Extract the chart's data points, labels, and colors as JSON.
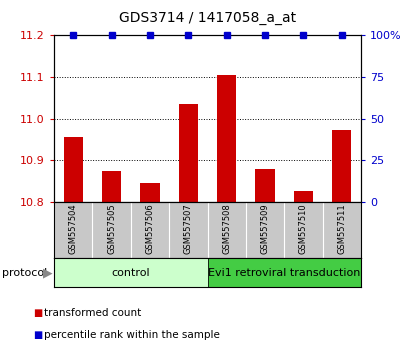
{
  "title": "GDS3714 / 1417058_a_at",
  "samples": [
    "GSM557504",
    "GSM557505",
    "GSM557506",
    "GSM557507",
    "GSM557508",
    "GSM557509",
    "GSM557510",
    "GSM557511"
  ],
  "bar_values": [
    10.955,
    10.875,
    10.845,
    11.035,
    11.105,
    10.878,
    10.825,
    10.972
  ],
  "percentile_values": [
    100,
    100,
    100,
    100,
    100,
    100,
    100,
    100
  ],
  "ylim_left": [
    10.8,
    11.2
  ],
  "ylim_right": [
    0,
    100
  ],
  "bar_color": "#cc0000",
  "percentile_color": "#0000cc",
  "left_tick_color": "#cc0000",
  "right_tick_color": "#0000cc",
  "control_label": "control",
  "transduction_label": "Evi1 retroviral transduction",
  "protocol_label": "protocol",
  "control_color": "#ccffcc",
  "transduction_color": "#44cc44",
  "legend_bar_label": "transformed count",
  "legend_pct_label": "percentile rank within the sample",
  "control_samples_count": 4,
  "background_color": "#ffffff",
  "yticks_left": [
    10.8,
    10.9,
    11.0,
    11.1,
    11.2
  ],
  "yticks_right": [
    0,
    25,
    50,
    75,
    100
  ],
  "label_bg_color": "#c8c8c8",
  "grid_color": "#000000",
  "grid_linestyle": "dotted",
  "bar_width": 0.5
}
